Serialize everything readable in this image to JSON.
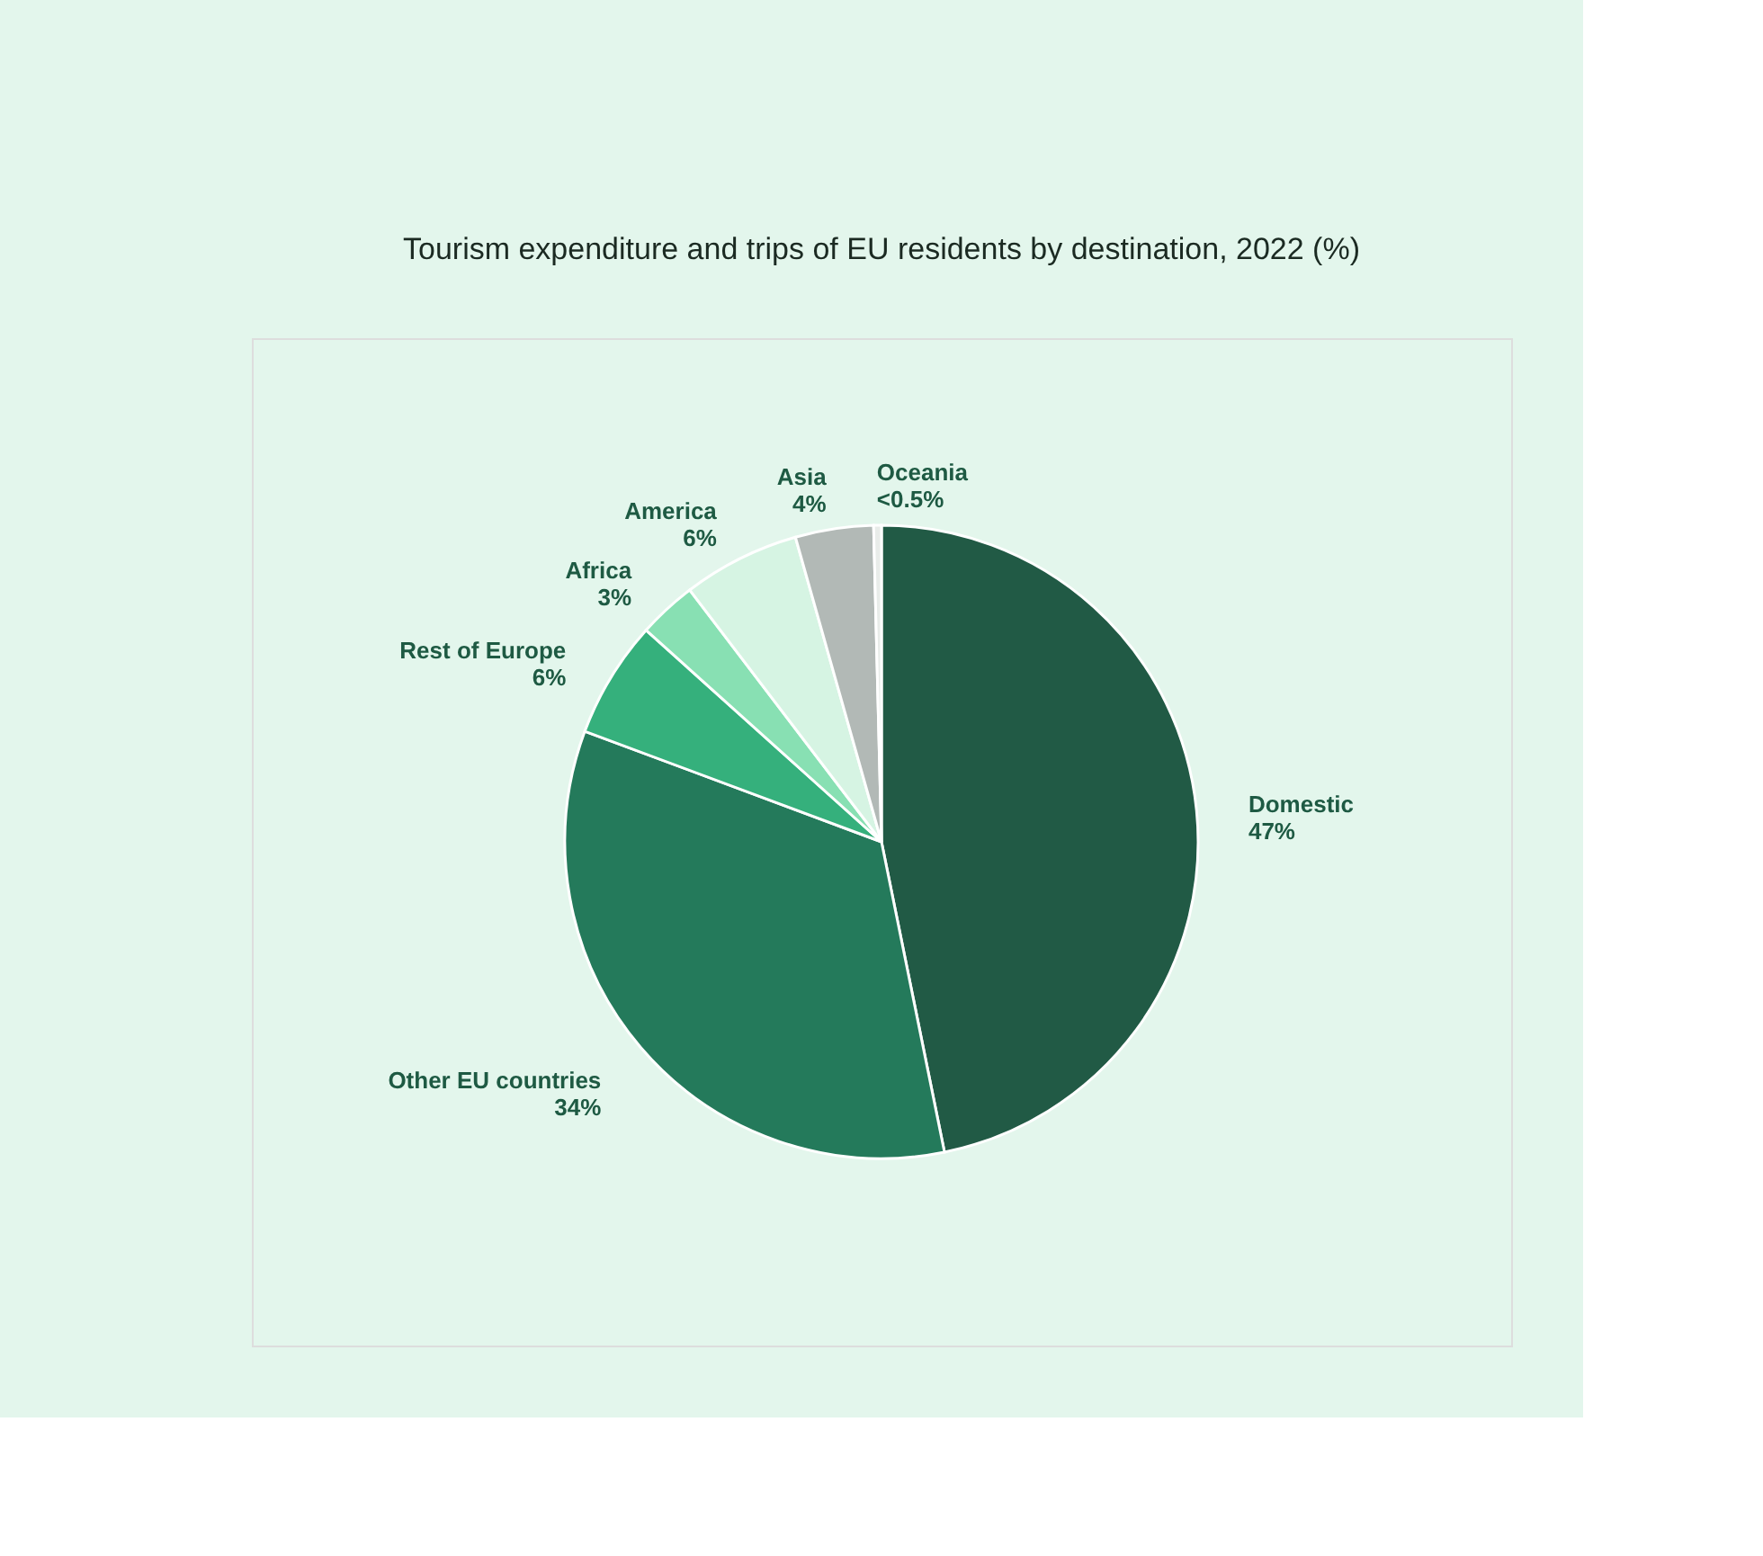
{
  "chart_data": {
    "type": "pie",
    "title": "Tourism expenditure and trips of EU residents by destination, 2022 (%)",
    "categories": [
      "Domestic",
      "Other EU countries",
      "Rest of Europe",
      "Africa",
      "America",
      "Asia",
      "Oceania"
    ],
    "values": [
      47,
      34,
      6,
      3,
      6,
      4,
      0.4
    ],
    "value_labels": [
      "47%",
      "34%",
      "6%",
      "3%",
      "6%",
      "4%",
      "<0.5%"
    ],
    "colors": [
      "#215a45",
      "#247a5b",
      "#35b07c",
      "#88e0b3",
      "#d6f4e3",
      "#b2b9b6",
      "#e8ece9"
    ],
    "legend": false
  }
}
